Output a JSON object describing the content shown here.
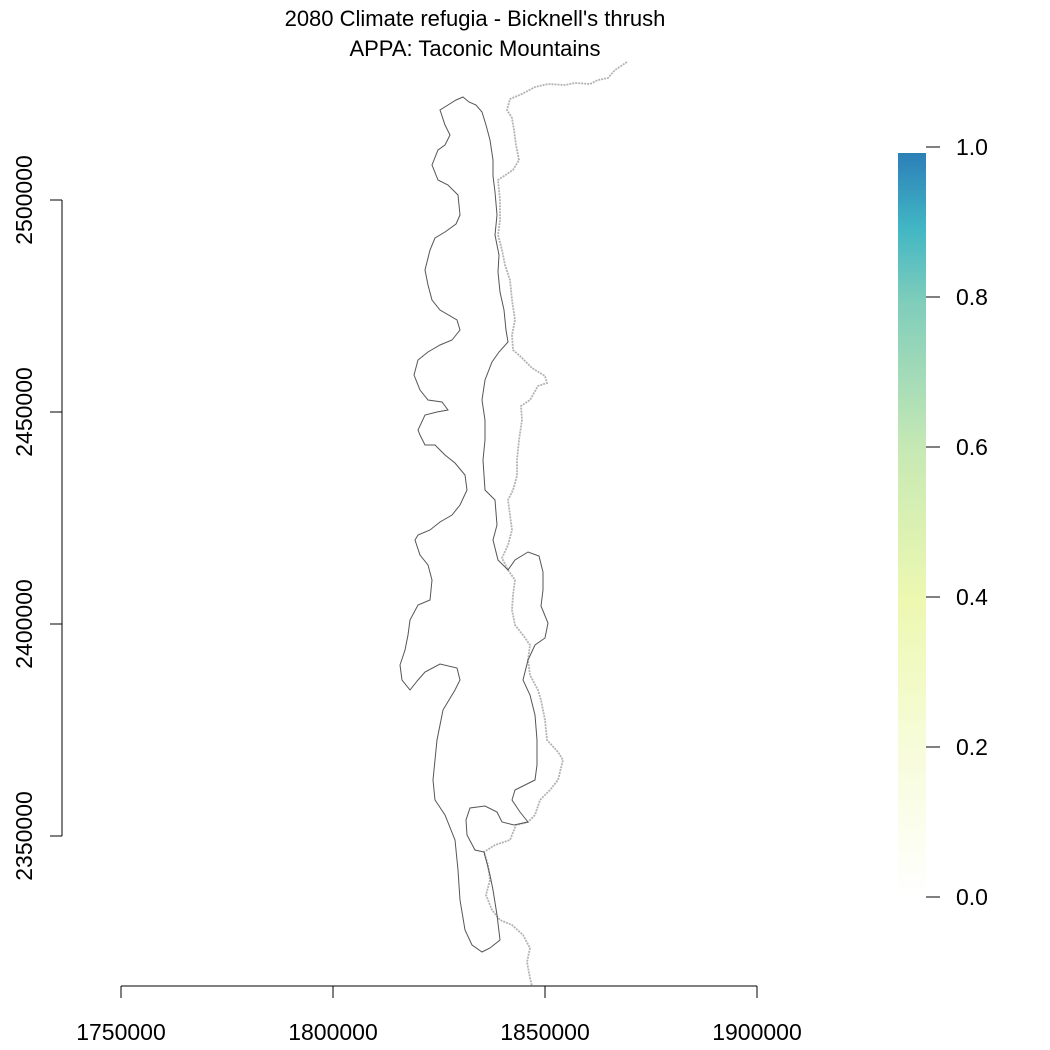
{
  "title": {
    "line1": "2080 Climate refugia - Bicknell's thrush",
    "line2": "APPA: Taconic Mountains"
  },
  "x_axis": {
    "ticks": [
      "1750000",
      "1800000",
      "1850000",
      "1900000"
    ]
  },
  "y_axis": {
    "ticks": [
      "2350000",
      "2400000",
      "2450000",
      "2500000"
    ]
  },
  "legend": {
    "type": "continuous-colorbar",
    "range": [
      0.0,
      1.0
    ],
    "labels": [
      "0.0",
      "0.2",
      "0.4",
      "0.6",
      "0.8",
      "1.0"
    ],
    "colors": [
      "#ffffff",
      "#f7fcd9",
      "#edf8b1",
      "#c7e9b4",
      "#7fcdbb",
      "#41b6c4",
      "#2c7fb8"
    ]
  },
  "layers": [
    {
      "name": "study-area-boundary",
      "color": "#555555"
    },
    {
      "name": "appalachian-trail",
      "color": "#b3b3b3"
    }
  ]
}
